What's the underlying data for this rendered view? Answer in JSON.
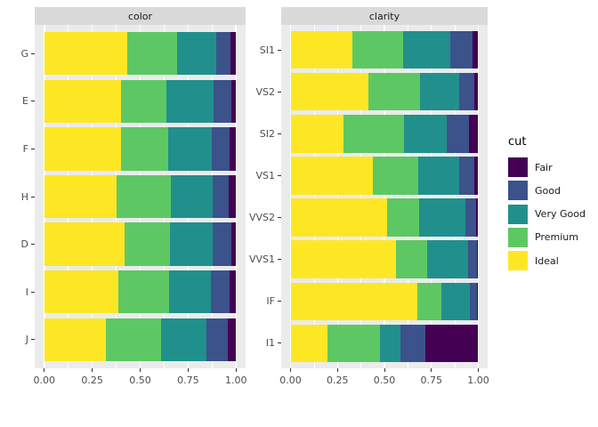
{
  "figure": {
    "background": "#FFFFFF",
    "panel_background": "#EBEBEB",
    "strip_background": "#D9D9D9",
    "grid_color": "#FFFFFF",
    "axis_tick_color": "#333333",
    "axis_text_color": "#4D4D4D",
    "strip_text_color": "#1A1A1A"
  },
  "legend": {
    "title": "cut",
    "items": [
      {
        "label": "Fair",
        "color": "#440154"
      },
      {
        "label": "Good",
        "color": "#3B528B"
      },
      {
        "label": "Very Good",
        "color": "#21908C"
      },
      {
        "label": "Premium",
        "color": "#5DC863"
      },
      {
        "label": "Ideal",
        "color": "#FDE725"
      }
    ]
  },
  "chart_data": {
    "type": "bar",
    "orientation": "horizontal",
    "stacking": "fill",
    "x_axis": {
      "range": [
        0,
        1
      ],
      "tick_values": [
        0,
        0.25,
        0.5,
        0.75,
        1
      ],
      "tick_labels": [
        "0.00",
        "0.25",
        "0.50",
        "0.75",
        "1.00"
      ],
      "minor_tick_values": [
        0.125,
        0.375,
        0.625,
        0.875
      ]
    },
    "segment_order": [
      "Ideal",
      "Premium",
      "Very Good",
      "Good",
      "Fair"
    ],
    "segment_colors": {
      "Ideal": "#FDE725",
      "Premium": "#5DC863",
      "Very Good": "#21908C",
      "Good": "#3B528B",
      "Fair": "#440154"
    },
    "facets": [
      {
        "title": "color",
        "rows": [
          {
            "category": "G",
            "values": [
              0.433,
              0.259,
              0.204,
              0.077,
              0.028
            ]
          },
          {
            "category": "E",
            "values": [
              0.398,
              0.239,
              0.245,
              0.095,
              0.023
            ]
          },
          {
            "category": "F",
            "values": [
              0.401,
              0.244,
              0.227,
              0.095,
              0.033
            ]
          },
          {
            "category": "H",
            "values": [
              0.375,
              0.284,
              0.22,
              0.085,
              0.036
            ]
          },
          {
            "category": "D",
            "values": [
              0.418,
              0.237,
              0.223,
              0.098,
              0.024
            ]
          },
          {
            "category": "I",
            "values": [
              0.386,
              0.263,
              0.222,
              0.096,
              0.032
            ]
          },
          {
            "category": "J",
            "values": [
              0.319,
              0.288,
              0.241,
              0.109,
              0.042
            ]
          }
        ]
      },
      {
        "title": "clarity",
        "rows": [
          {
            "category": "SI1",
            "values": [
              0.328,
              0.274,
              0.248,
              0.119,
              0.031
            ]
          },
          {
            "category": "VS2",
            "values": [
              0.414,
              0.274,
              0.211,
              0.08,
              0.021
            ]
          },
          {
            "category": "SI2",
            "values": [
              0.283,
              0.321,
              0.228,
              0.118,
              0.051
            ]
          },
          {
            "category": "VS1",
            "values": [
              0.439,
              0.243,
              0.217,
              0.079,
              0.021
            ]
          },
          {
            "category": "VVS2",
            "values": [
              0.514,
              0.172,
              0.244,
              0.056,
              0.014
            ]
          },
          {
            "category": "VVS1",
            "values": [
              0.56,
              0.169,
              0.216,
              0.051,
              0.005
            ]
          },
          {
            "category": "IF",
            "values": [
              0.677,
              0.128,
              0.15,
              0.04,
              0.005
            ]
          },
          {
            "category": "I1",
            "values": [
              0.197,
              0.277,
              0.113,
              0.13,
              0.283
            ]
          }
        ]
      }
    ]
  }
}
